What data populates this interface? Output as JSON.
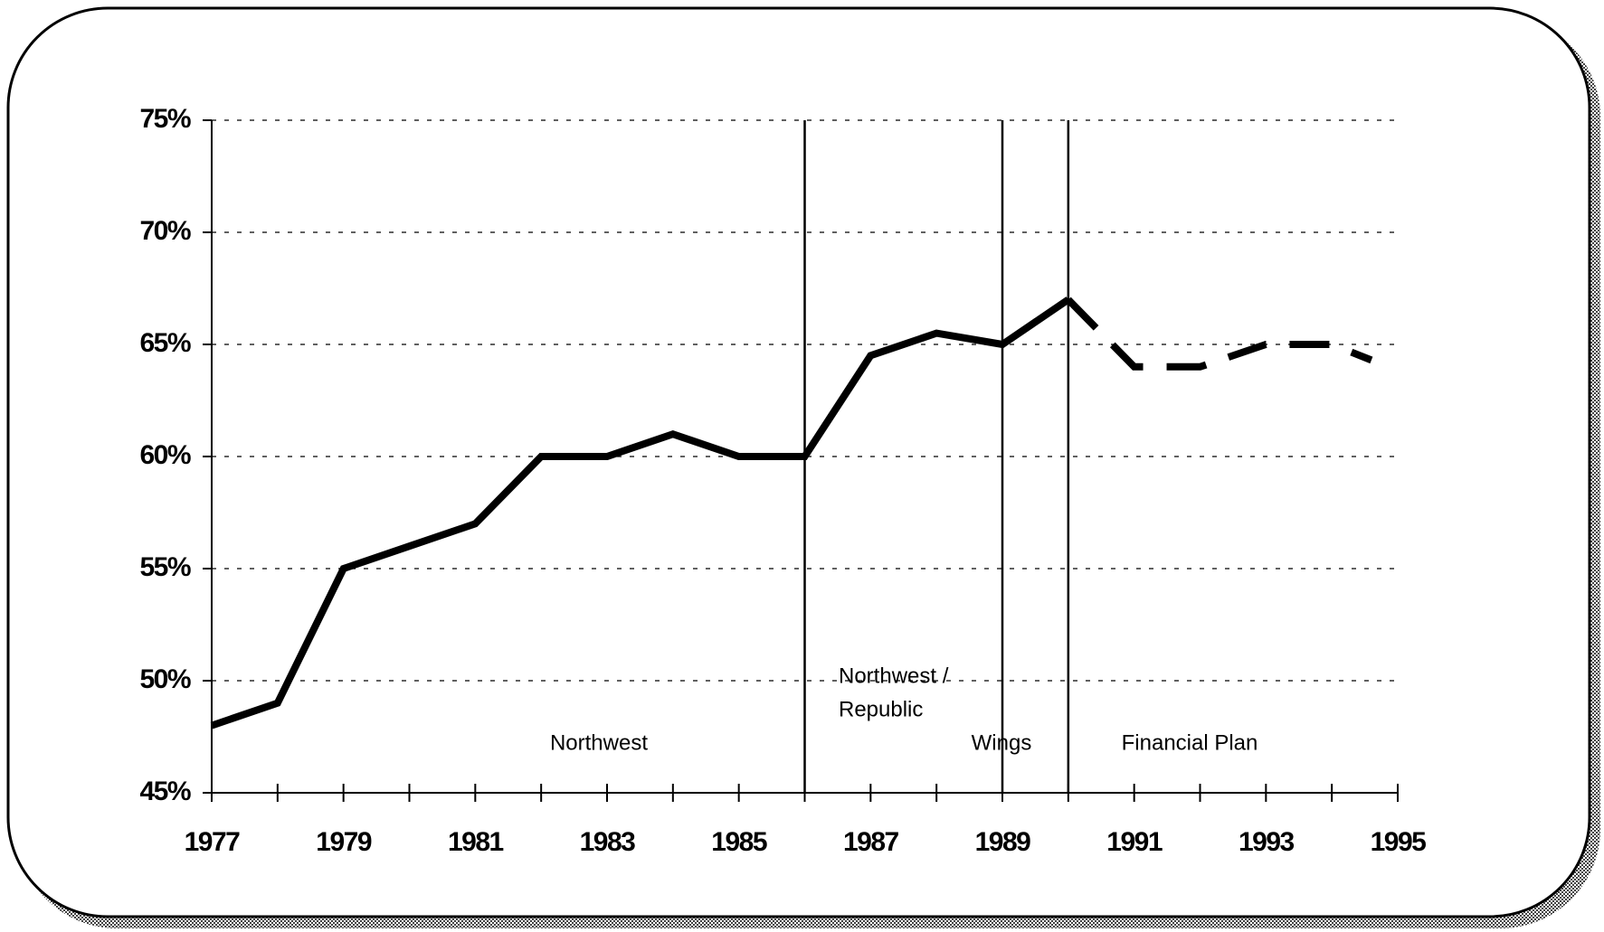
{
  "chart_data": {
    "type": "line",
    "xlim": [
      1977,
      1995
    ],
    "xticks": [
      1977,
      1979,
      1981,
      1983,
      1985,
      1987,
      1989,
      1991,
      1993,
      1995
    ],
    "xminorticks": [
      1978,
      1980,
      1982,
      1984,
      1986,
      1988,
      1990,
      1992,
      1994
    ],
    "ylim": [
      45,
      75
    ],
    "yticks": [
      {
        "value": 45,
        "label": "45%"
      },
      {
        "value": 50,
        "label": "50%"
      },
      {
        "value": 55,
        "label": "55%"
      },
      {
        "value": 60,
        "label": "60%"
      },
      {
        "value": 65,
        "label": "65%"
      },
      {
        "value": 70,
        "label": "70%"
      },
      {
        "value": 75,
        "label": "75%"
      }
    ],
    "grid": true,
    "series": [
      {
        "color": "#000000",
        "dashed": false,
        "x": [
          1977,
          1978,
          1979,
          1980,
          1981,
          1982,
          1983,
          1984,
          1985,
          1986,
          1987,
          1988,
          1989,
          1990
        ],
        "values": [
          48,
          49,
          55,
          56,
          57,
          60,
          60,
          61,
          60,
          60,
          64.5,
          65.5,
          65,
          67
        ]
      },
      {
        "color": "#000000",
        "dashed": true,
        "x": [
          1990,
          1991,
          1992,
          1993,
          1994,
          1994.6
        ],
        "values": [
          67,
          64,
          64,
          65,
          65,
          64.3
        ]
      }
    ],
    "dividers": [
      1986,
      1989,
      1990
    ],
    "annotations": [
      [
        "Northwest"
      ],
      [
        "Northwest /",
        "Republic"
      ],
      [
        "Wings"
      ],
      [
        "Financial Plan"
      ]
    ]
  }
}
